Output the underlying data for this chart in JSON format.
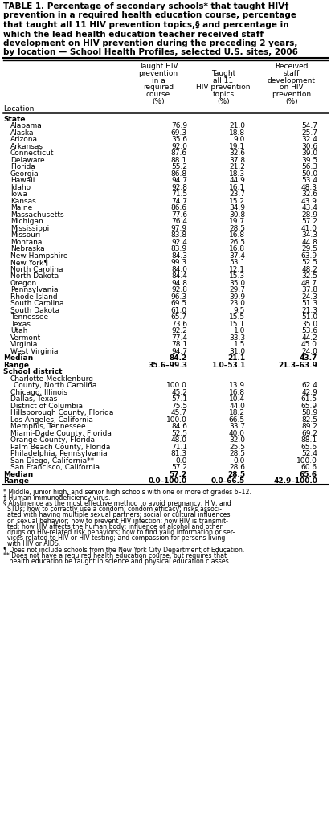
{
  "title_lines": [
    "TABLE 1. Percentage of secondary schools* that taught HIV†",
    "prevention in a required health education course, percentage",
    "that taught all 11 HIV prevention topics,§ and percentage in",
    "which the lead health education teacher received staff",
    "development on HIV prevention during the preceding 2 years,",
    "by location — School Health Profiles, selected U.S. sites, 2006"
  ],
  "col1_header": [
    "Taught HIV",
    "prevention",
    "in a",
    "required",
    "course",
    "(%)"
  ],
  "col2_header": [
    "Taught",
    "all 11",
    "HIV prevention",
    "topics",
    "(%)"
  ],
  "col3_header": [
    "Received",
    "staff",
    "development",
    "on HIV",
    "prevention",
    "(%)"
  ],
  "location_label": "Location",
  "state_header": "State",
  "states": [
    [
      "Alabama",
      "76.9",
      "21.0",
      "54.7"
    ],
    [
      "Alaska",
      "69.3",
      "18.8",
      "25.7"
    ],
    [
      "Arizona",
      "35.6",
      "9.0",
      "32.4"
    ],
    [
      "Arkansas",
      "92.0",
      "19.1",
      "30.6"
    ],
    [
      "Connecticut",
      "87.6",
      "32.6",
      "39.0"
    ],
    [
      "Delaware",
      "88.1",
      "37.8",
      "39.5"
    ],
    [
      "Florida",
      "55.2",
      "21.2",
      "56.3"
    ],
    [
      "Georgia",
      "86.8",
      "18.3",
      "50.0"
    ],
    [
      "Hawaii",
      "94.7",
      "44.9",
      "53.4"
    ],
    [
      "Idaho",
      "92.8",
      "16.1",
      "48.3"
    ],
    [
      "Iowa",
      "71.5",
      "23.7",
      "32.6"
    ],
    [
      "Kansas",
      "74.7",
      "15.2",
      "43.9"
    ],
    [
      "Maine",
      "86.6",
      "34.9",
      "43.4"
    ],
    [
      "Massachusetts",
      "77.6",
      "30.8",
      "28.9"
    ],
    [
      "Michigan",
      "76.4",
      "19.7",
      "57.2"
    ],
    [
      "Mississippi",
      "97.9",
      "28.5",
      "41.0"
    ],
    [
      "Missouri",
      "83.8",
      "16.8",
      "34.3"
    ],
    [
      "Montana",
      "92.4",
      "26.5",
      "44.8"
    ],
    [
      "Nebraska",
      "83.9",
      "16.8",
      "29.5"
    ],
    [
      "New Hampshire",
      "84.3",
      "37.4",
      "63.9"
    ],
    [
      "New York¶",
      "99.3",
      "53.1",
      "52.5"
    ],
    [
      "North Carolina",
      "84.0",
      "12.1",
      "48.2"
    ],
    [
      "North Dakota",
      "84.4",
      "15.3",
      "32.5"
    ],
    [
      "Oregon",
      "94.8",
      "35.0",
      "48.7"
    ],
    [
      "Pennsylvania",
      "92.8",
      "29.7",
      "37.8"
    ],
    [
      "Rhode Island",
      "96.3",
      "39.9",
      "24.3"
    ],
    [
      "South Carolina",
      "69.5",
      "23.0",
      "51.3"
    ],
    [
      "South Dakota",
      "61.0",
      "9.5",
      "21.3"
    ],
    [
      "Tennessee",
      "65.7",
      "15.5",
      "51.0"
    ],
    [
      "Texas",
      "73.6",
      "15.1",
      "35.0"
    ],
    [
      "Utah",
      "92.2",
      "1.0",
      "53.6"
    ],
    [
      "Vermont",
      "77.4",
      "33.3",
      "44.2"
    ],
    [
      "Virginia",
      "78.1",
      "1.5",
      "45.0"
    ],
    [
      "West Virginia",
      "94.7",
      "31.0",
      "24.0"
    ]
  ],
  "state_median": [
    "Median",
    "84.2",
    "21.1",
    "43.7"
  ],
  "state_range": [
    "Range",
    "35.6–99.3",
    "1.0–53.1",
    "21.3–63.9"
  ],
  "district_header": "School district",
  "districts": [
    [
      "Charlotte-Mecklenburg\n  County, North Carolina",
      "100.0",
      "13.9",
      "62.4"
    ],
    [
      "Chicago, Illinois",
      "45.2",
      "16.8",
      "42.9"
    ],
    [
      "Dallas, Texas",
      "57.1",
      "10.4",
      "61.5"
    ],
    [
      "District of Columbia",
      "75.5",
      "44.0",
      "65.9"
    ],
    [
      "Hillsborough County, Florida",
      "45.7",
      "18.2",
      "58.9"
    ],
    [
      "Los Angeles, California",
      "100.0",
      "66.5",
      "82.5"
    ],
    [
      "Memphis, Tennessee",
      "84.6",
      "33.7",
      "89.2"
    ],
    [
      "Miami-Dade County, Florida",
      "52.5",
      "40.0",
      "69.2"
    ],
    [
      "Orange County, Florida",
      "48.0",
      "32.0",
      "88.1"
    ],
    [
      "Palm Beach County, Florida",
      "71.1",
      "25.5",
      "65.6"
    ],
    [
      "Philadelphia, Pennsylvania",
      "81.3",
      "28.5",
      "52.4"
    ],
    [
      "San Diego, California**",
      "0.0",
      "0.0",
      "100.0"
    ],
    [
      "San Francisco, California",
      "57.2",
      "28.6",
      "60.6"
    ]
  ],
  "district_median": [
    "Median",
    "57.2",
    "28.5",
    "65.6"
  ],
  "district_range": [
    "Range",
    "0.0–100.0",
    "0.0–66.5",
    "42.9–100.0"
  ],
  "footnote1": "* Middle, junior high, and senior high schools with one or more of grades 6–12.",
  "footnote2": "† Human immunodeficiency virus.",
  "footnote3_lines": [
    "§ Abstinence as the most effective method to avoid pregnancy, HIV, and",
    "  STDs; how to correctly use a condom; condom efficacy; risks associ-",
    "  ated with having multiple sexual partners; social or cultural influences",
    "  on sexual behavior; how to prevent HIV infection; how HIV is transmit-",
    "  ted; how HIV affects the human body; influence of alcohol and other",
    "  drugs on HIV-related risk behaviors; how to find valid information or ser-",
    "  vices related to HIV or HIV testing; and compassion for persons living",
    "  with HIV or AIDS."
  ],
  "footnote4": "¶ Does not include schools from the New York City Department of Education.",
  "footnote5_lines": [
    "** Does not have a required health education course, but requires that",
    "   health education be taught in science and physical education classes."
  ]
}
